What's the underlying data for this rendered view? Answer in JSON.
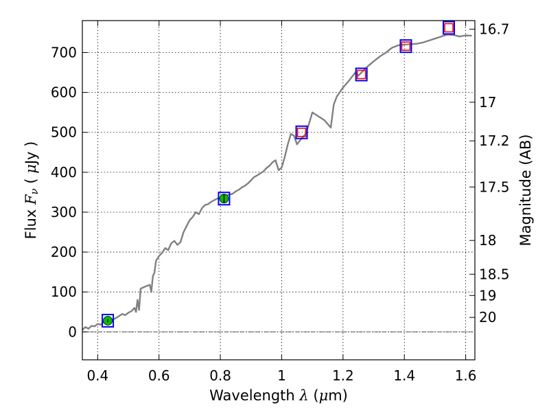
{
  "chart_data": {
    "type": "line",
    "xlabel": "Wavelength  λ (μm)",
    "ylabel": "Flux  F_ν  ( μJy )",
    "y2label": "Magnitude (AB)",
    "xlim": [
      0.35,
      1.63
    ],
    "ylim": [
      -70,
      780
    ],
    "x_ticks": [
      0.4,
      0.6,
      0.8,
      1.0,
      1.2,
      1.4,
      1.6
    ],
    "x_tick_labels": [
      "0.4",
      "0.6",
      "0.8",
      "1",
      "1.2",
      "1.4",
      "1.6"
    ],
    "y_ticks": [
      0,
      100,
      200,
      300,
      400,
      500,
      600,
      700
    ],
    "y_tick_labels": [
      "0",
      "100",
      "200",
      "300",
      "400",
      "500",
      "600",
      "700"
    ],
    "mag_ticks": [
      16.7,
      17,
      17.2,
      17.5,
      18,
      18.5,
      19,
      20
    ],
    "mag_tick_labels": [
      "16.7",
      "17",
      "17.2",
      "17.5",
      "18",
      "18.5",
      "19",
      "20"
    ],
    "grid": true,
    "zero_line": true,
    "spectrum": {
      "color": "#808080",
      "x": [
        0.35,
        0.36,
        0.37,
        0.38,
        0.39,
        0.4,
        0.41,
        0.42,
        0.43,
        0.44,
        0.45,
        0.46,
        0.47,
        0.48,
        0.49,
        0.5,
        0.51,
        0.52,
        0.525,
        0.53,
        0.535,
        0.54,
        0.55,
        0.56,
        0.57,
        0.575,
        0.58,
        0.585,
        0.59,
        0.6,
        0.61,
        0.62,
        0.63,
        0.64,
        0.65,
        0.66,
        0.67,
        0.68,
        0.69,
        0.7,
        0.71,
        0.72,
        0.73,
        0.74,
        0.75,
        0.76,
        0.77,
        0.78,
        0.79,
        0.8,
        0.81,
        0.82,
        0.83,
        0.84,
        0.85,
        0.86,
        0.87,
        0.88,
        0.89,
        0.9,
        0.91,
        0.92,
        0.93,
        0.94,
        0.95,
        0.96,
        0.97,
        0.98,
        0.99,
        1.0,
        1.01,
        1.02,
        1.03,
        1.04,
        1.05,
        1.06,
        1.08,
        1.1,
        1.12,
        1.14,
        1.16,
        1.17,
        1.18,
        1.2,
        1.22,
        1.24,
        1.25,
        1.26,
        1.28,
        1.3,
        1.32,
        1.34,
        1.36,
        1.38,
        1.4,
        1.42,
        1.44,
        1.46,
        1.48,
        1.5,
        1.52,
        1.54,
        1.56,
        1.58,
        1.6,
        1.62
      ],
      "y": [
        5,
        12,
        8,
        15,
        14,
        20,
        18,
        25,
        27,
        28,
        31,
        35,
        40,
        45,
        42,
        48,
        52,
        60,
        50,
        80,
        55,
        108,
        112,
        115,
        118,
        100,
        140,
        148,
        178,
        190,
        198,
        210,
        205,
        222,
        228,
        218,
        225,
        250,
        265,
        280,
        288,
        300,
        295,
        310,
        318,
        320,
        326,
        330,
        334,
        336,
        338,
        342,
        344,
        346,
        352,
        356,
        362,
        366,
        372,
        380,
        388,
        392,
        397,
        402,
        410,
        416,
        425,
        430,
        405,
        412,
        438,
        470,
        496,
        492,
        470,
        480,
        498,
        550,
        540,
        530,
        512,
        570,
        590,
        612,
        630,
        650,
        642,
        650,
        665,
        678,
        690,
        700,
        712,
        718,
        720,
        721,
        722,
        725,
        730,
        735,
        740,
        745,
        744,
        740,
        743,
        742
      ]
    },
    "photometry": [
      {
        "x": 0.433,
        "y": 28,
        "filled": true,
        "err": 4
      },
      {
        "x": 0.812,
        "y": 334,
        "filled": true,
        "err": 10
      },
      {
        "x": 1.065,
        "y": 500,
        "filled": false
      },
      {
        "x": 1.26,
        "y": 645,
        "filled": false
      },
      {
        "x": 1.405,
        "y": 716,
        "filled": false
      },
      {
        "x": 1.545,
        "y": 762,
        "filled": false
      }
    ],
    "colors": {
      "box": "#0000ff",
      "model_square": "#ff0000",
      "filled_point": "#00c000",
      "zero_line": "#404040"
    }
  }
}
